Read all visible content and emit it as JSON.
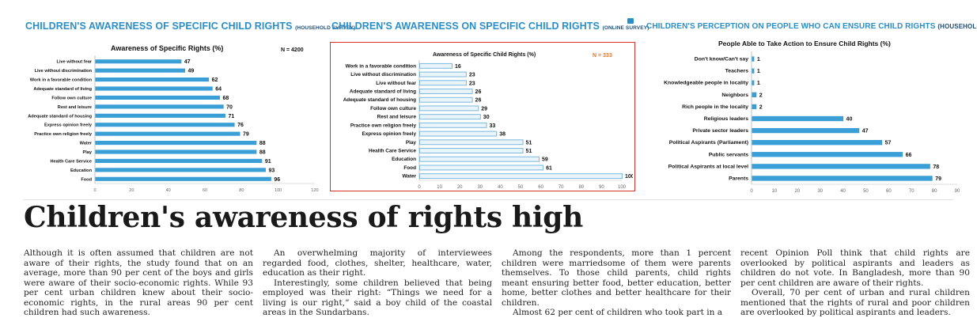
{
  "section1": {
    "title": "CHILDREN'S AWARENESS OF SPECIFIC CHILD RIGHTS",
    "subtitle": "(HOUSEHOLD SURVEY)",
    "chart_title": "Awareness of Specific Rights (%)",
    "n_label": "N = 4200"
  },
  "section2": {
    "title": "CHILDREN'S AWARENESS ON SPECIFIC CHILD RIGHTS",
    "subtitle": "(ONLINE SURVEY)",
    "chart_title": "Awareness of Specific Child Rights (%)",
    "n_label": "N = 333"
  },
  "section3": {
    "title": "CHILDREN'S PERCEPTION ON PEOPLE WHO CAN ENSURE CHILD RIGHTS",
    "subtitle": "(HOUSEHOLD SURVEY)",
    "chart_title": "People Able to Take Action to Ensure Child Rights (%)"
  },
  "chart_data": [
    {
      "type": "bar",
      "orientation": "horizontal",
      "title": "Awareness of Specific Rights (%)",
      "categories": [
        "Live without fear",
        "Live without discrimination",
        "Work in a favorable condition",
        "Adequate standard of living",
        "Follow own culture",
        "Rest and leisure",
        "Adequate standard of housing",
        "Express opinion freely",
        "Practice own religion freely",
        "Water",
        "Play",
        "Health Care Service",
        "Education",
        "Food"
      ],
      "values": [
        47,
        49,
        62,
        64,
        68,
        70,
        71,
        76,
        79,
        88,
        88,
        91,
        93,
        96
      ],
      "xlim": [
        0,
        120
      ],
      "ticks": [
        0,
        20,
        40,
        60,
        80,
        100,
        120
      ],
      "color": "#3a9fd6",
      "grid": false
    },
    {
      "type": "bar",
      "orientation": "horizontal",
      "title": "Awareness of Specific Child Rights (%)",
      "categories": [
        "Work in a favorable condition",
        "Live without discrimination",
        "Live without fear",
        "Adequate standard of living",
        "Adequate standard of housing",
        "Follow own culture",
        "Rest and leisure",
        "Practice own religion freely",
        "Express opinion freely",
        "Play",
        "Health Care Service",
        "Education",
        "Food",
        "Water"
      ],
      "values": [
        16,
        23,
        23,
        26,
        26,
        29,
        30,
        33,
        38,
        51,
        51,
        59,
        61,
        100
      ],
      "xlim": [
        0,
        100
      ],
      "ticks": [
        0,
        10,
        20,
        30,
        40,
        50,
        60,
        70,
        80,
        90,
        100
      ],
      "color": "#7ab8dc",
      "grid": false
    },
    {
      "type": "bar",
      "orientation": "horizontal",
      "title": "People Able to Take Action to Ensure Child Rights (%)",
      "categories": [
        "Don't know/Can't say",
        "Teachers",
        "Knowledgeable people in locality",
        "Neighbors",
        "Rich people in the locality",
        "Religious leaders",
        "Private sector leaders",
        "Political Aspirants (Parliament)",
        "Public servants",
        "Political Aspirants at local level",
        "Parents"
      ],
      "values": [
        1,
        1,
        1,
        2,
        2,
        40,
        47,
        57,
        66,
        78,
        79
      ],
      "xlim": [
        0,
        90
      ],
      "ticks": [
        0,
        10,
        20,
        30,
        40,
        50,
        60,
        70,
        80,
        90
      ],
      "color": "#3a9fd6",
      "grid": false
    }
  ],
  "article": {
    "headline": "Children's awareness of rights high",
    "col1": [
      "Although it is often assumed that children are not aware of their rights, the study found that on an average, more than 90 per cent of the boys and girls were aware of their socio-economic rights. While 93 per cent urban children knew about their socio-economic rights, in the rural areas 90 per cent children had such awareness."
    ],
    "col2": [
      "An overwhelming majority of interviewees regarded food, clothes, shelter, healthcare, water, education as their right.",
      "Interestingly, some children believed that being employed was their right: “Things we need for a living is our right,” said a boy child of the coastal areas in the Sundarbans."
    ],
    "col3": [
      "Among the respondents, more than 1 percent children were marriedsome of them were parents themselves. To those child parents, child rights meant ensuring better food, better education, better home, better clothes and better healthcare for their children.",
      "Almost 62 per cent of children who took part in a"
    ],
    "col4": [
      "recent Opinion Poll think that child rights are overlooked by political aspirants and leaders as children do not vote. In Bangladesh, more than 90 per cent children are aware of their rights.",
      "Overall, 70 per cent of urban and rural children mentioned that the rights of rural and poor children are overlooked by political aspirants and leaders."
    ]
  }
}
